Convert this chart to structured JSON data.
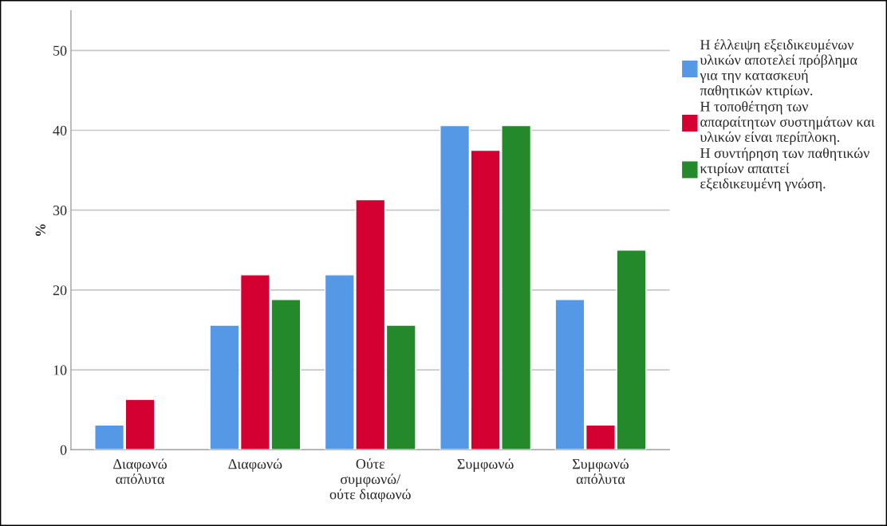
{
  "chart_data": {
    "type": "bar",
    "ylabel": "%",
    "categories": [
      "Διαφωνώ\nαπόλυτα",
      "Διαφωνώ",
      "Ούτε\nσυμφωνώ/\nούτε διαφωνώ",
      "Συμφωνώ",
      "Συμφωνώ\nαπόλυτα"
    ],
    "series": [
      {
        "name": "Η έλλειψη εξειδικευμένων υλικών αποτελεί πρόβλημα για την κατασκευή παθητικών κτιρίων.",
        "color": "#5599e6",
        "values": [
          3.1,
          15.6,
          21.9,
          40.6,
          18.8
        ]
      },
      {
        "name": "Η τοποθέτηση των απαραίτητων συστημάτων και υλικών είναι περίπλοκη.",
        "color": "#d50032",
        "values": [
          6.3,
          21.9,
          31.3,
          37.5,
          3.1
        ]
      },
      {
        "name": "Η συντήρηση των παθητικών κτιρίων απαιτεί εξειδικευμένη γνώση.",
        "color": "#24892a",
        "values": [
          null,
          18.8,
          15.6,
          40.6,
          25.0
        ]
      }
    ],
    "ylim": [
      0,
      55
    ],
    "yticks": [
      0,
      10,
      20,
      30,
      40,
      50
    ],
    "grid": "y",
    "legend": "top right"
  }
}
